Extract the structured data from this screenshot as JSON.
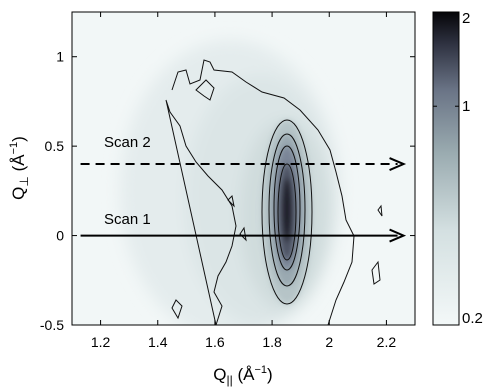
{
  "chart_data": {
    "type": "heatmap",
    "title": "",
    "xlabel": "Q_{||} (Å^{-1})",
    "ylabel": "Q_{⊥} (Å^{-1})",
    "xlim": [
      1.1,
      2.3
    ],
    "ylim": [
      -0.5,
      1.25
    ],
    "x_ticks": [
      1.2,
      1.4,
      1.6,
      1.8,
      2,
      2.2
    ],
    "x_tick_labels": [
      "1.2",
      "1.4",
      "1.6",
      "1.8",
      "2",
      "2.2"
    ],
    "y_ticks": [
      -0.5,
      0,
      0.5,
      1
    ],
    "y_tick_labels": [
      "-0.5",
      "0",
      "0.5",
      "1"
    ],
    "grid": false,
    "colorbar": {
      "scale": "log",
      "range": [
        0.2,
        2
      ],
      "ticks": [
        0.2,
        1,
        2
      ],
      "tick_labels": [
        "0.2",
        "1",
        "2"
      ],
      "colormap": "bone (white to black)"
    },
    "intensity_peak": {
      "center_q_parallel": 1.86,
      "center_q_perp": 0.05,
      "max_value": 2,
      "extent_q_parallel": [
        1.78,
        1.96
      ],
      "extent_q_perp": [
        -0.4,
        0.5
      ]
    },
    "scans": [
      {
        "name": "Scan 1",
        "q_perp": 0.0,
        "q_parallel_range": [
          1.13,
          2.26
        ],
        "style": "solid",
        "arrow": true
      },
      {
        "name": "Scan 2",
        "q_perp": 0.4,
        "q_parallel_range": [
          1.13,
          2.26
        ],
        "style": "dashed",
        "arrow": true
      }
    ]
  }
}
